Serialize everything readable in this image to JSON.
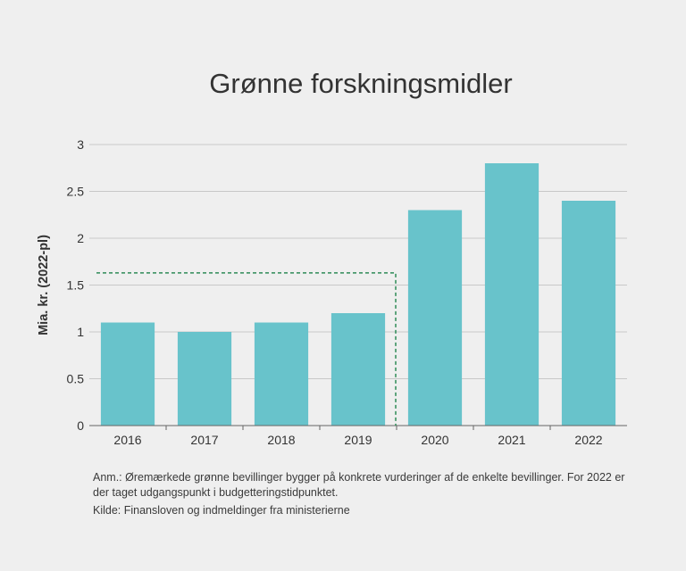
{
  "chart_data": {
    "type": "bar",
    "title": "Grønne forskningsmidler",
    "xlabel": "",
    "ylabel": "Mia. kr. (2022-pl)",
    "categories": [
      "2016",
      "2017",
      "2018",
      "2019",
      "2020",
      "2021",
      "2022"
    ],
    "values": [
      1.1,
      1.0,
      1.1,
      1.2,
      2.3,
      2.8,
      2.4
    ],
    "ylim": [
      0,
      3
    ],
    "yticks": [
      "0",
      "0.5",
      "1",
      "1.5",
      "2",
      "2.5",
      "3"
    ],
    "grid": true,
    "bar_color": "#68c3cb",
    "highlight": {
      "style": "dashed",
      "color": "#2e8b57",
      "covers_categories": [
        "2016",
        "2017",
        "2018",
        "2019"
      ],
      "level": 1.63
    }
  },
  "notes": {
    "annotation": "Anm.: Øremærkede grønne bevillinger bygger på konkrete vurderinger af de enkelte bevillinger. For 2022 er der taget udgangspunkt i budgetteringstidpunktet.",
    "source": "Kilde: Finansloven og indmeldinger fra ministerierne"
  }
}
